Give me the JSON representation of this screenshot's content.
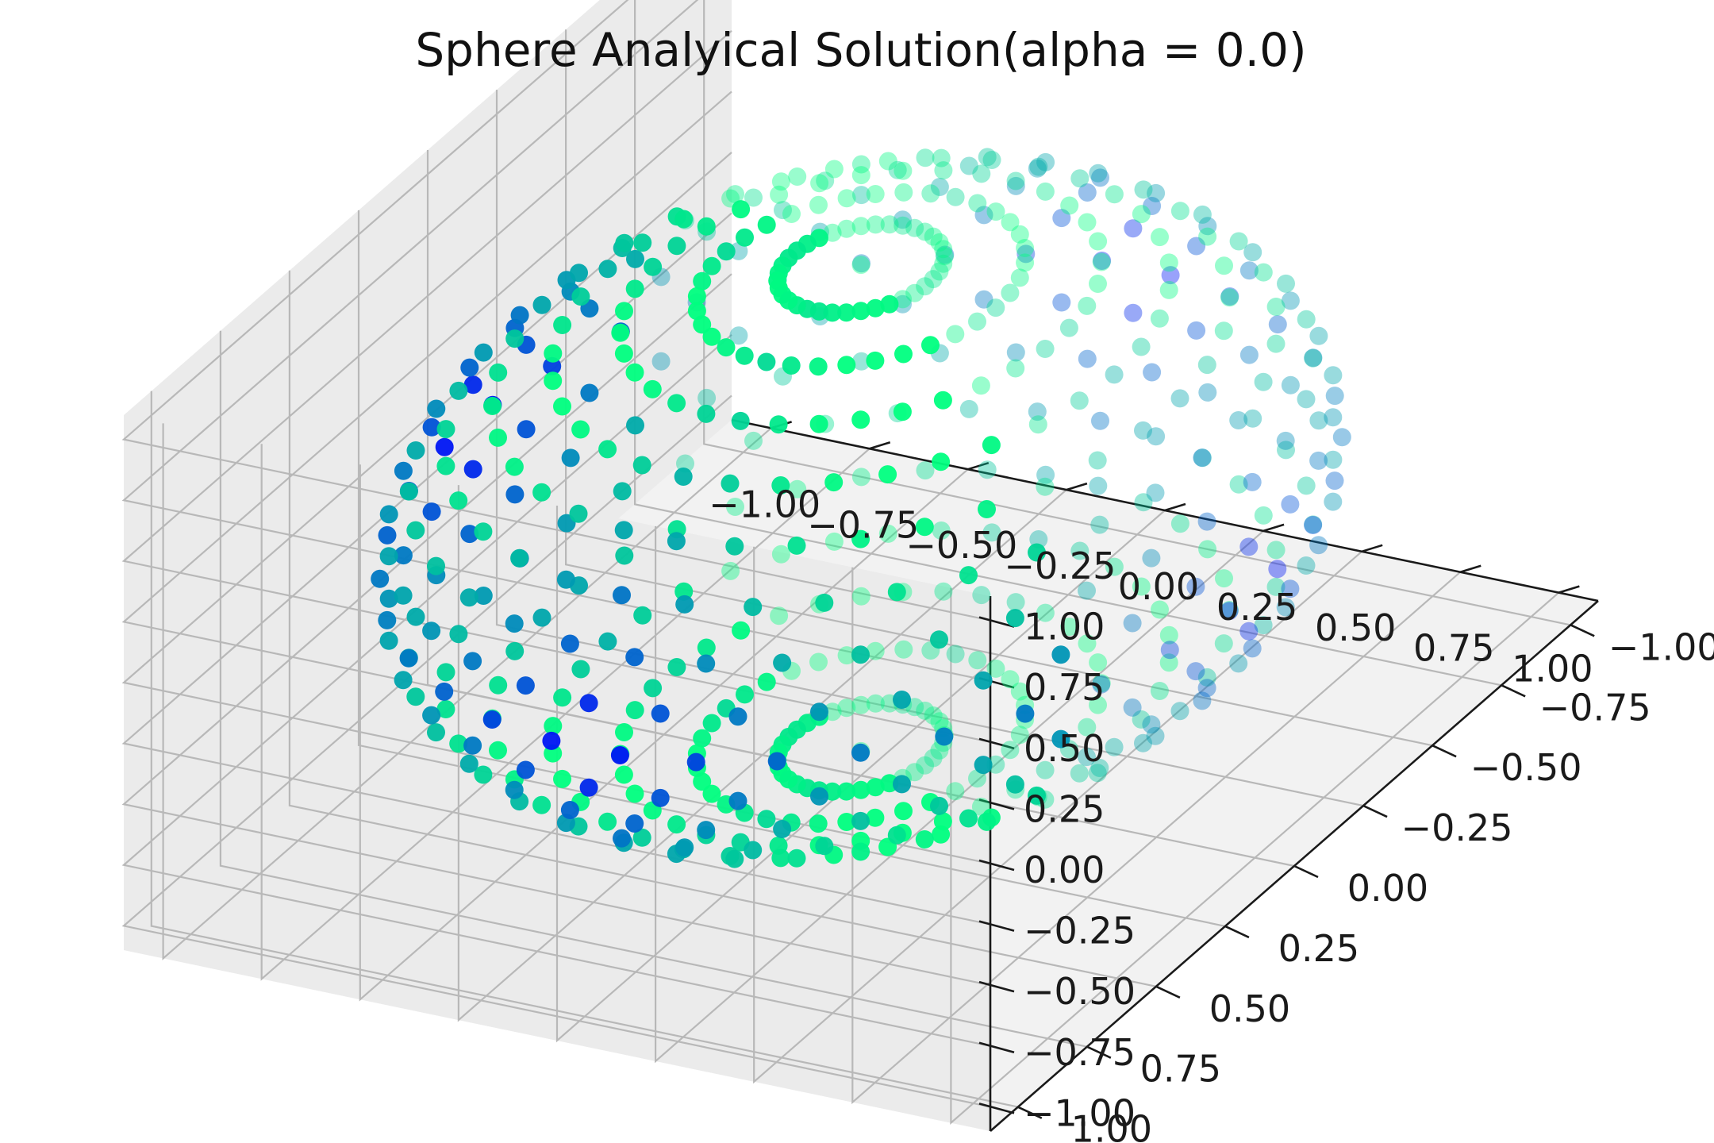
{
  "chart_data": {
    "type": "scatter",
    "projection": "3d",
    "title": "Sphere Analyical Solution(alpha = 0.0)",
    "xlabel": "",
    "ylabel": "",
    "zlabel": "",
    "xlim": [
      -1.1,
      1.1
    ],
    "ylim": [
      -1.1,
      1.1
    ],
    "zlim": [
      -1.1,
      1.1
    ],
    "grid": true,
    "legend": "none",
    "colormap": "winter",
    "colormap_colors": [
      "#0000ff",
      "#00ff80"
    ],
    "pane_colors": [
      "#f2f2f2",
      "#ebebeb",
      "#e6e6e6"
    ],
    "x_ticks": [
      "−1.00",
      "−0.75",
      "−0.50",
      "−0.25",
      "0.00",
      "0.25",
      "0.50",
      "0.75",
      "1.00"
    ],
    "y_ticks": [
      "−1.00",
      "−0.75",
      "−0.50",
      "−0.25",
      "0.00",
      "0.25",
      "0.50",
      "0.75",
      "1.00"
    ],
    "z_ticks": [
      "−1.00",
      "−0.75",
      "−0.50",
      "−0.25",
      "0.00",
      "0.25",
      "0.50",
      "0.75",
      "1.00"
    ],
    "tick_values": [
      -1.0,
      -0.75,
      -0.5,
      -0.25,
      0.0,
      0.25,
      0.5,
      0.75,
      1.0
    ],
    "sphere": {
      "radius": 1.0,
      "latitude_rings": 18,
      "points_per_ring": 36
    }
  }
}
